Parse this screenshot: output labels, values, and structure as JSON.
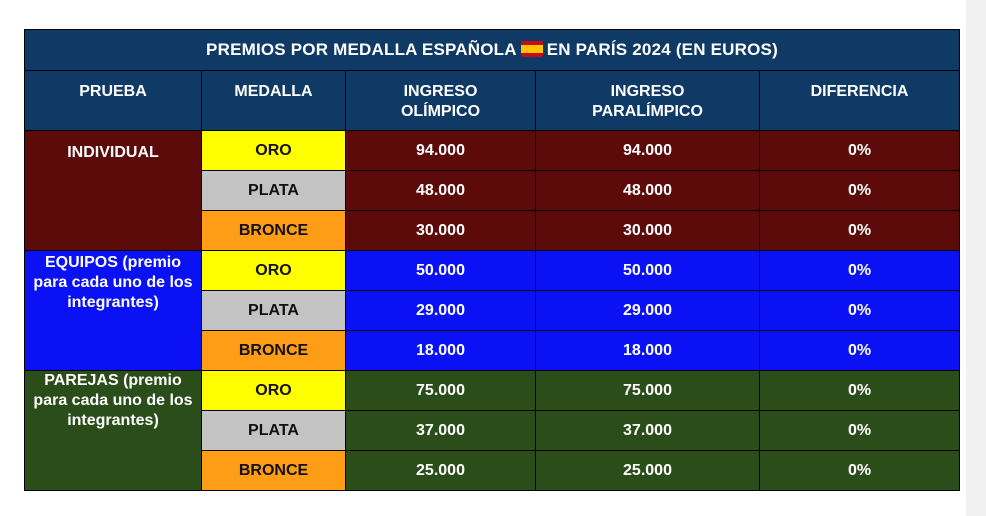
{
  "title_before_flag": "PREMIOS POR MEDALLA ESPAÑOLA",
  "title_flag_icon": "spain-flag-icon",
  "title_after_flag": "EN PARÍS 2024 (EN EUROS)",
  "headers": [
    "PRUEBA",
    "MEDALLA",
    "INGRESO OLÍMPICO",
    "INGRESO PARALÍMPICO",
    "DIFERENCIA"
  ],
  "colors": {
    "header": "#0f3a66",
    "individual": "#5c0a0a",
    "equipos": "#0a12f5",
    "parejas": "#2b4d1a",
    "oro": "#ffff00",
    "plata": "#c3c3c3",
    "bronce": "#ff9d16"
  },
  "groups": [
    {
      "prueba": "INDIVIDUAL",
      "rows": [
        {
          "medalla": "ORO",
          "olimpico": "94.000",
          "paralimpico": "94.000",
          "diferencia": "0%"
        },
        {
          "medalla": "PLATA",
          "olimpico": "48.000",
          "paralimpico": "48.000",
          "diferencia": "0%"
        },
        {
          "medalla": "BRONCE",
          "olimpico": "30.000",
          "paralimpico": "30.000",
          "diferencia": "0%"
        }
      ]
    },
    {
      "prueba": "EQUIPOS (premio para cada uno de los integrantes)",
      "rows": [
        {
          "medalla": "ORO",
          "olimpico": "50.000",
          "paralimpico": "50.000",
          "diferencia": "0%"
        },
        {
          "medalla": "PLATA",
          "olimpico": "29.000",
          "paralimpico": "29.000",
          "diferencia": "0%"
        },
        {
          "medalla": "BRONCE",
          "olimpico": "18.000",
          "paralimpico": "18.000",
          "diferencia": "0%"
        }
      ]
    },
    {
      "prueba": "PAREJAS (premio para cada uno de los integrantes)",
      "rows": [
        {
          "medalla": "ORO",
          "olimpico": "75.000",
          "paralimpico": "75.000",
          "diferencia": "0%"
        },
        {
          "medalla": "PLATA",
          "olimpico": "37.000",
          "paralimpico": "37.000",
          "diferencia": "0%"
        },
        {
          "medalla": "BRONCE",
          "olimpico": "25.000",
          "paralimpico": "25.000",
          "diferencia": "0%"
        }
      ]
    }
  ]
}
